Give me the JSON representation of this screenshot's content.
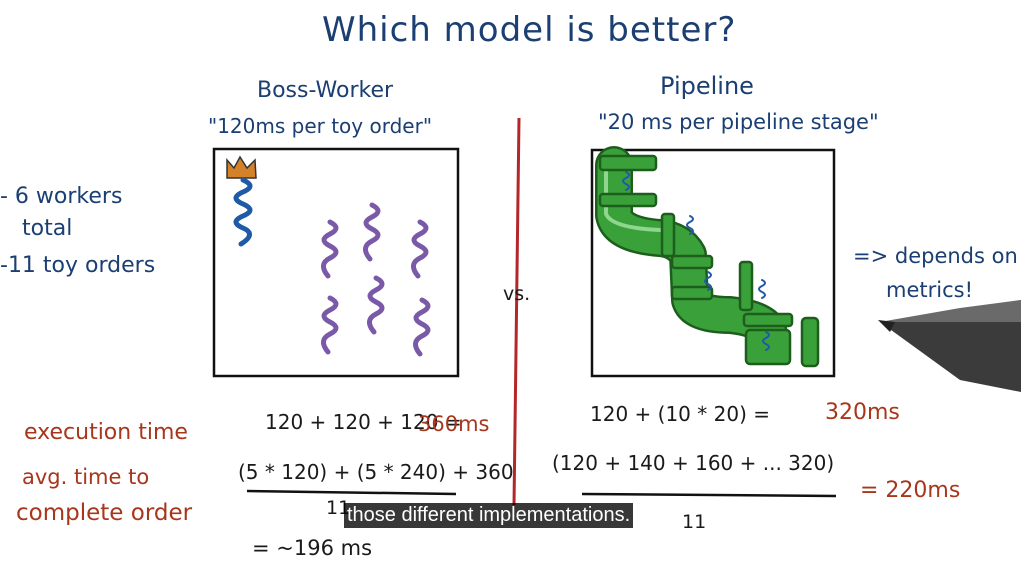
{
  "title": "Which model is better?",
  "boss_worker": {
    "title": "Boss-Worker",
    "subtitle": "\"120ms per toy order\"",
    "eq_exec_terms": "120 + 120 + 120 =",
    "eq_exec_result": "360ms",
    "eq_avg_numerator": "(5 * 120) + (5 * 240) + 360",
    "eq_avg_denominator": "11",
    "eq_avg_result": "= ~196 ms"
  },
  "pipeline": {
    "title": "Pipeline",
    "subtitle": "\"20 ms per pipeline stage\"",
    "eq_exec_terms": "120 +  (10 * 20)  =",
    "eq_exec_result": "320ms",
    "eq_avg_numerator": "(120 + 140 + 160 + ...  320)",
    "eq_avg_denominator": "11",
    "eq_avg_result": "= 220ms"
  },
  "vs": "vs.",
  "side_notes": {
    "workers_line1": "- 6 workers",
    "workers_line2": "total",
    "orders": "-11 toy orders"
  },
  "conclusion": {
    "line1": "=> depends on",
    "line2": "metrics!"
  },
  "row_labels": {
    "execution_time": "execution time",
    "avg_time_line1": "avg. time to",
    "avg_time_line2": "complete order"
  },
  "caption": "those different implementations.",
  "colors": {
    "ink_blue": "#1b3f72",
    "ink_red": "#a8361b",
    "divider": "#b3262a",
    "worker_purple": "#7a5aa8",
    "boss_blue": "#1f5aa6",
    "crown_orange": "#d4822a",
    "pipe_green": "#3aa13a"
  }
}
